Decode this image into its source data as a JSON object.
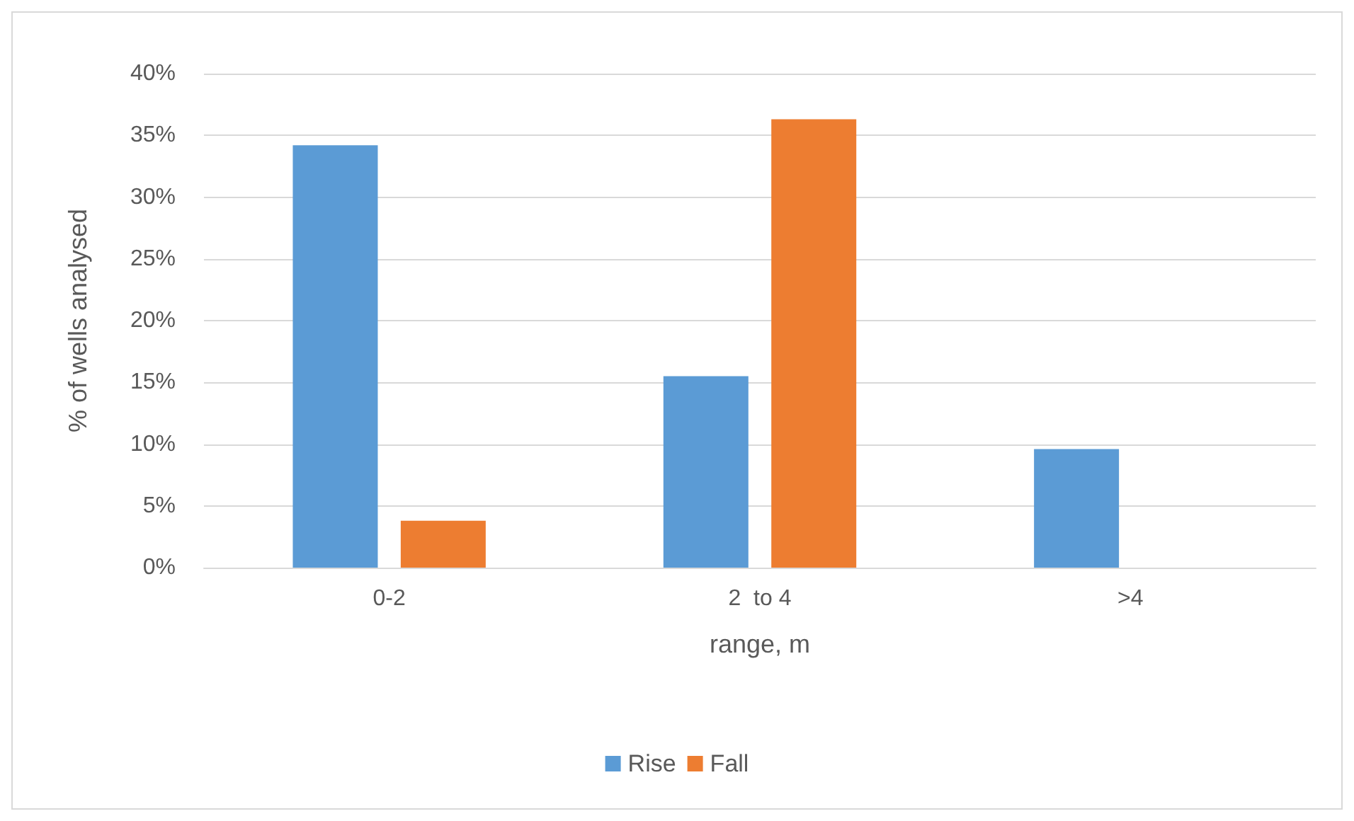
{
  "chart_data": {
    "type": "bar",
    "xlabel": "range, m",
    "ylabel": "% of wells analysed",
    "categories": [
      "0-2",
      "2  to 4",
      ">4"
    ],
    "series": [
      {
        "name": "Rise",
        "color": "#5b9bd5",
        "values": [
          34.2,
          15.5,
          9.6
        ]
      },
      {
        "name": "Fall",
        "color": "#ed7d31",
        "values": [
          3.8,
          36.3,
          0
        ]
      }
    ],
    "ylim": [
      0,
      40
    ],
    "yticks": [
      {
        "value": 0,
        "label": "0%"
      },
      {
        "value": 5,
        "label": "5%"
      },
      {
        "value": 10,
        "label": "10%"
      },
      {
        "value": 15,
        "label": "15%"
      },
      {
        "value": 20,
        "label": "20%"
      },
      {
        "value": 25,
        "label": "25%"
      },
      {
        "value": 30,
        "label": "30%"
      },
      {
        "value": 35,
        "label": "35%"
      },
      {
        "value": 40,
        "label": "40%"
      }
    ],
    "grid": "y",
    "legend": "bottom"
  }
}
